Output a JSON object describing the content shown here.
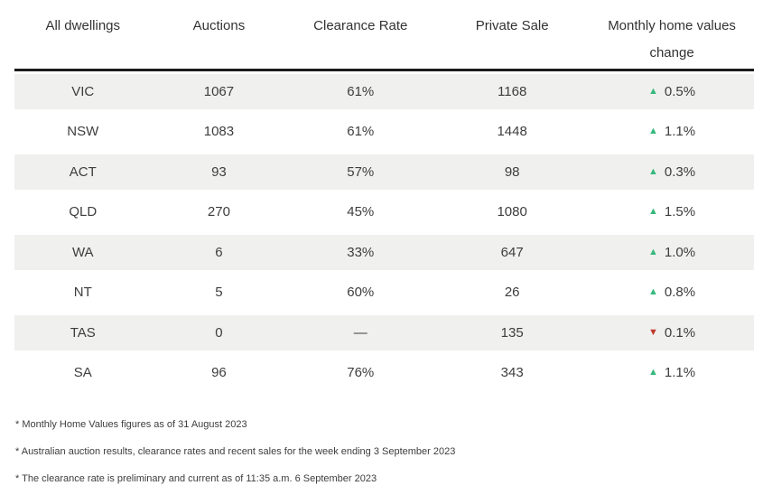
{
  "table": {
    "headers": [
      "All dwellings",
      "Auctions",
      "Clearance Rate",
      "Private Sale",
      "Monthly home values change"
    ],
    "rows": [
      {
        "state": "VIC",
        "auctions": "1067",
        "clearance": "61%",
        "private_sale": "1168",
        "change": "0.5%",
        "direction": "up"
      },
      {
        "state": "NSW",
        "auctions": "1083",
        "clearance": "61%",
        "private_sale": "1448",
        "change": "1.1%",
        "direction": "up"
      },
      {
        "state": "ACT",
        "auctions": "93",
        "clearance": "57%",
        "private_sale": "98",
        "change": "0.3%",
        "direction": "up"
      },
      {
        "state": "QLD",
        "auctions": "270",
        "clearance": "45%",
        "private_sale": "1080",
        "change": "1.5%",
        "direction": "up"
      },
      {
        "state": "WA",
        "auctions": "6",
        "clearance": "33%",
        "private_sale": "647",
        "change": "1.0%",
        "direction": "up"
      },
      {
        "state": "NT",
        "auctions": "5",
        "clearance": "60%",
        "private_sale": "26",
        "change": "0.8%",
        "direction": "up"
      },
      {
        "state": "TAS",
        "auctions": "0",
        "clearance": "—",
        "private_sale": "135",
        "change": "0.1%",
        "direction": "down"
      },
      {
        "state": "SA",
        "auctions": "96",
        "clearance": "76%",
        "private_sale": "343",
        "change": "1.1%",
        "direction": "up"
      }
    ]
  },
  "icons": {
    "up": "▲",
    "down": "▼"
  },
  "colors": {
    "up_green": "#35b97c",
    "down_red": "#c0392b",
    "row_stripe": "#f0f0ef",
    "header_rule": "#1b1b1b",
    "text": "#3d3d3d"
  },
  "footnotes": [
    "* Monthly Home Values figures as of 31 August 2023",
    "* Australian auction results, clearance rates and recent sales for the week ending 3 September 2023",
    "* The clearance rate is preliminary and current as of 11:35 a.m. 6 September 2023"
  ],
  "chart_data": {
    "type": "table",
    "title": "Australian auction results and home values by state",
    "columns": [
      "All dwellings",
      "Auctions",
      "Clearance Rate",
      "Private Sale",
      "Monthly home values change"
    ],
    "rows": [
      [
        "VIC",
        1067,
        "61%",
        1168,
        "+0.5%"
      ],
      [
        "NSW",
        1083,
        "61%",
        1448,
        "+1.1%"
      ],
      [
        "ACT",
        93,
        "57%",
        98,
        "+0.3%"
      ],
      [
        "QLD",
        270,
        "45%",
        1080,
        "+1.5%"
      ],
      [
        "WA",
        6,
        "33%",
        647,
        "+1.0%"
      ],
      [
        "NT",
        5,
        "60%",
        26,
        "+0.8%"
      ],
      [
        "TAS",
        0,
        "—",
        135,
        "-0.1%"
      ],
      [
        "SA",
        96,
        "76%",
        343,
        "+1.1%"
      ]
    ],
    "notes": [
      "Monthly Home Values figures as of 31 August 2023",
      "Australian auction results, clearance rates and recent sales for the week ending 3 September 2023",
      "The clearance rate is preliminary and current as of 11:35 a.m. 6 September 2023"
    ]
  }
}
